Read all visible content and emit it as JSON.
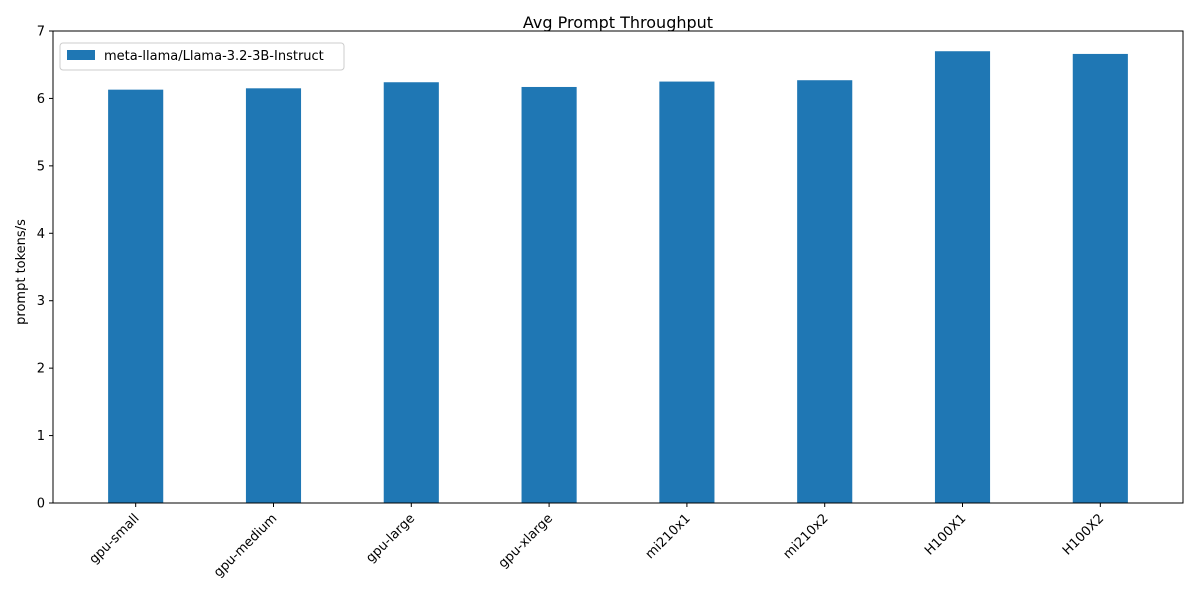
{
  "chart_data": {
    "type": "bar",
    "title": "Avg Prompt Throughput",
    "xlabel": "",
    "ylabel": "prompt tokens/s",
    "categories": [
      "gpu-small",
      "gpu-medium",
      "gpu-large",
      "gpu-xlarge",
      "mi210x1",
      "mi210x2",
      "H100X1",
      "H100X2"
    ],
    "series": [
      {
        "name": "meta-llama/Llama-3.2-3B-Instruct",
        "color": "#1f77b4",
        "values": [
          6.13,
          6.15,
          6.24,
          6.17,
          6.25,
          6.27,
          6.7,
          6.66
        ]
      }
    ],
    "ylim": [
      0,
      7
    ],
    "yticks": [
      0,
      1,
      2,
      3,
      4,
      5,
      6,
      7
    ],
    "grid": false,
    "legend_position": "top-left"
  }
}
